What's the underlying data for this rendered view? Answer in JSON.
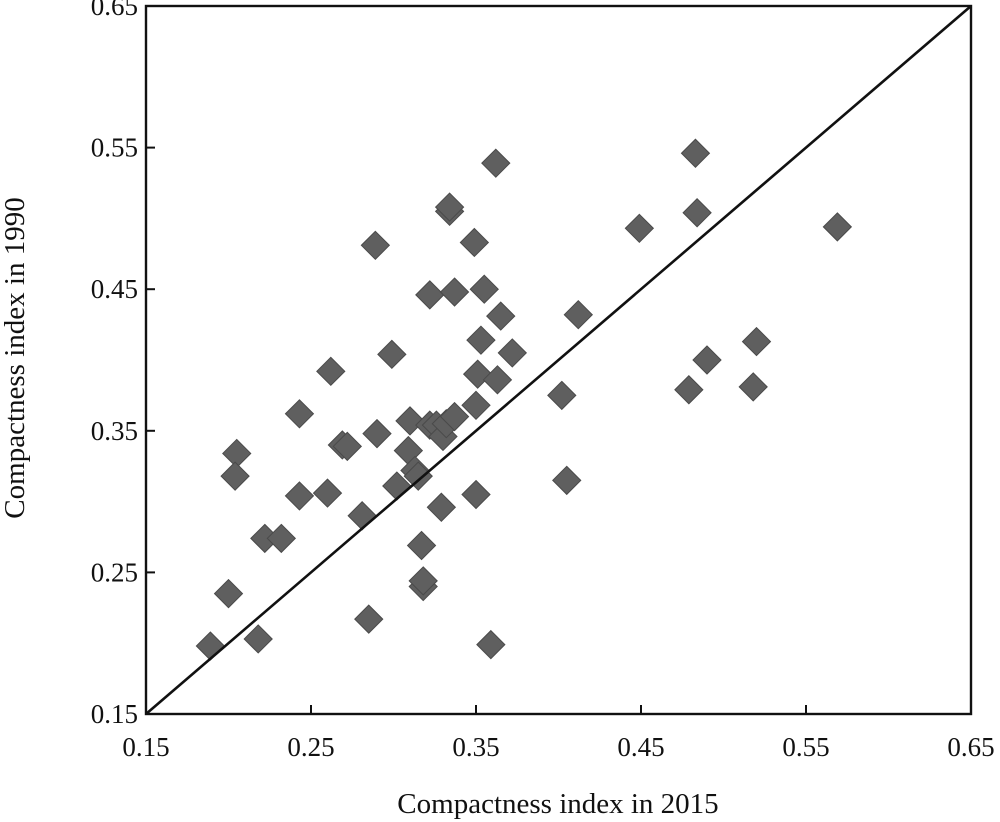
{
  "chart_data": {
    "type": "scatter",
    "title": "",
    "xlabel": "Compactness index in 2015",
    "ylabel": "Compactness index in 1990",
    "xlim": [
      0.15,
      0.65
    ],
    "ylim": [
      0.15,
      0.65
    ],
    "xticks": [
      "0.15",
      "0.25",
      "0.35",
      "0.45",
      "0.55",
      "0.65"
    ],
    "yticks": [
      "0.15",
      "0.25",
      "0.35",
      "0.45",
      "0.55",
      "0.65"
    ],
    "reference_line": {
      "from": [
        0.15,
        0.15
      ],
      "to": [
        0.65,
        0.65
      ]
    },
    "grid": false,
    "marker": "diamond",
    "marker_color": "#5f5f5f",
    "series": [
      {
        "points": [
          [
            0.189,
            0.198
          ],
          [
            0.2,
            0.235
          ],
          [
            0.205,
            0.334
          ],
          [
            0.204,
            0.318
          ],
          [
            0.218,
            0.203
          ],
          [
            0.222,
            0.274
          ],
          [
            0.232,
            0.274
          ],
          [
            0.243,
            0.362
          ],
          [
            0.243,
            0.304
          ],
          [
            0.26,
            0.306
          ],
          [
            0.262,
            0.392
          ],
          [
            0.269,
            0.34
          ],
          [
            0.272,
            0.339
          ],
          [
            0.281,
            0.29
          ],
          [
            0.285,
            0.217
          ],
          [
            0.289,
            0.481
          ],
          [
            0.29,
            0.348
          ],
          [
            0.299,
            0.404
          ],
          [
            0.302,
            0.311
          ],
          [
            0.309,
            0.336
          ],
          [
            0.31,
            0.357
          ],
          [
            0.313,
            0.322
          ],
          [
            0.315,
            0.318
          ],
          [
            0.317,
            0.269
          ],
          [
            0.318,
            0.24
          ],
          [
            0.318,
            0.244
          ],
          [
            0.322,
            0.354
          ],
          [
            0.322,
            0.446
          ],
          [
            0.326,
            0.354
          ],
          [
            0.329,
            0.296
          ],
          [
            0.33,
            0.346
          ],
          [
            0.332,
            0.355
          ],
          [
            0.334,
            0.505
          ],
          [
            0.334,
            0.508
          ],
          [
            0.337,
            0.448
          ],
          [
            0.337,
            0.36
          ],
          [
            0.349,
            0.483
          ],
          [
            0.35,
            0.305
          ],
          [
            0.35,
            0.368
          ],
          [
            0.351,
            0.39
          ],
          [
            0.353,
            0.414
          ],
          [
            0.355,
            0.45
          ],
          [
            0.359,
            0.199
          ],
          [
            0.362,
            0.539
          ],
          [
            0.363,
            0.386
          ],
          [
            0.365,
            0.431
          ],
          [
            0.372,
            0.405
          ],
          [
            0.402,
            0.375
          ],
          [
            0.405,
            0.315
          ],
          [
            0.412,
            0.432
          ],
          [
            0.449,
            0.493
          ],
          [
            0.479,
            0.379
          ],
          [
            0.483,
            0.546
          ],
          [
            0.484,
            0.504
          ],
          [
            0.49,
            0.4
          ],
          [
            0.518,
            0.381
          ],
          [
            0.52,
            0.413
          ],
          [
            0.569,
            0.494
          ]
        ]
      }
    ]
  }
}
